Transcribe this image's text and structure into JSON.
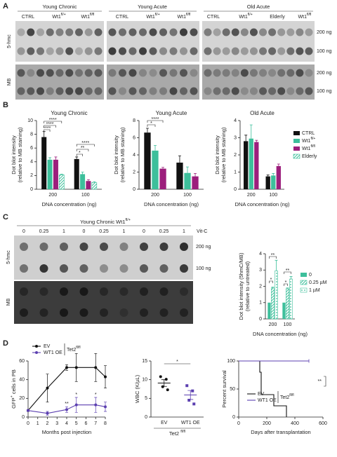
{
  "figure": {
    "panel_a": {
      "label": "A",
      "groups": [
        "Young Chronic",
        "Young Acute",
        "Old Acute"
      ],
      "lanes": [
        "CTRL",
        {
          "text": "Wt1",
          "sup": "fl/+"
        },
        {
          "text": "Wt1",
          "sup": "fl/fl"
        },
        "CTRL",
        {
          "text": "Wt1",
          "sup": "fl/+"
        },
        {
          "text": "Wt1",
          "sup": "fl/fl"
        },
        "CTRL",
        {
          "text": "Wt1",
          "sup": "fl/+"
        },
        "Elderly",
        {
          "text": "Wt1",
          "sup": "fl/fl"
        }
      ],
      "rows": [
        "200 ng",
        "100 ng",
        "200 ng",
        "100 ng"
      ],
      "blots": [
        "5-hmc",
        "MB"
      ]
    },
    "panel_b": {
      "label": "B"
    },
    "panel_c": {
      "label": "C",
      "title": {
        "text": "Young Chronic Wt1",
        "sup": "fl/+"
      },
      "treatment": "Vit-C",
      "lanes": [
        "0",
        "0.25",
        "1",
        "0",
        "0.25",
        "1",
        "0",
        "0.25",
        "1"
      ],
      "rows": [
        "200 ng",
        "100 ng"
      ],
      "blots": [
        "5-hmc",
        "MB"
      ]
    },
    "panel_d": {
      "label": "D"
    }
  },
  "chart_data": [
    {
      "type": "bar",
      "title": "Young Chronic",
      "ylabel": [
        "Dot blot intensity",
        "(relative to MB staining)"
      ],
      "xlabel": "DNA concentration (ng)",
      "categories": [
        "200",
        "100"
      ],
      "ylim": [
        0,
        10
      ],
      "yticks": [
        0,
        2,
        4,
        6,
        8,
        10
      ],
      "legend": "right",
      "series": [
        {
          "name": "CTRL",
          "color": "#111111",
          "values": [
            7.6,
            4.4
          ],
          "errors": [
            0.8,
            0.3
          ]
        },
        {
          "name": {
            "text": "Wt1",
            "sup": "fl/+"
          },
          "color": "#3dbf9b",
          "values": [
            4.3,
            2.2
          ],
          "errors": [
            0.3,
            0.3
          ]
        },
        {
          "name": {
            "text": "Wt1",
            "sup": "fl/fl"
          },
          "color": "#9c1f7c",
          "values": [
            4.3,
            1.2
          ],
          "errors": [
            0.4,
            0.2
          ]
        },
        {
          "name": "Elderly",
          "color": "#3dbf9b",
          "fill": "hatch",
          "values": [
            2.1,
            1.0
          ],
          "errors": [
            0.1,
            0.1
          ]
        }
      ],
      "annotations": [
        "****",
        "****",
        "****",
        "****",
        "**",
        "*"
      ]
    },
    {
      "type": "bar",
      "title": "Young Acute",
      "ylabel": [
        "Dot blot intensity",
        "(relative to MB staining)"
      ],
      "xlabel": "DNA concentration (ng)",
      "categories": [
        "200",
        "100"
      ],
      "ylim": [
        0,
        8
      ],
      "yticks": [
        0,
        2,
        4,
        6,
        8
      ],
      "series": [
        {
          "color": "#111111",
          "values": [
            6.6,
            3.1
          ],
          "errors": [
            0.5,
            0.8
          ]
        },
        {
          "color": "#3dbf9b",
          "values": [
            4.5,
            1.9
          ],
          "errors": [
            0.6,
            0.7
          ]
        },
        {
          "color": "#9c1f7c",
          "values": [
            2.4,
            1.5
          ],
          "errors": [
            0.15,
            0.35
          ]
        }
      ],
      "annotations": [
        "*",
        "****"
      ]
    },
    {
      "type": "bar",
      "title": "Old Acute",
      "ylabel": [
        "Dot blot intensity",
        "(relative to MB staining)"
      ],
      "xlabel": "DNA concentration (ng)",
      "categories": [
        "200",
        "100"
      ],
      "ylim": [
        0,
        4
      ],
      "yticks": [
        0,
        1,
        2,
        3,
        4
      ],
      "series": [
        {
          "color": "#111111",
          "values": [
            2.8,
            0.75
          ],
          "errors": [
            0.35,
            0.08
          ]
        },
        {
          "color": "#3dbf9b",
          "values": [
            2.95,
            0.8
          ],
          "errors": [
            0.8,
            0.12
          ]
        },
        {
          "color": "#9c1f7c",
          "values": [
            2.75,
            1.35
          ],
          "errors": [
            0.1,
            0.12
          ]
        }
      ]
    },
    {
      "type": "bar",
      "ylabel": [
        "Dot blot intensity (5hmC/MB)",
        "(relative to untreated)"
      ],
      "xlabel": "DNA concentration (ng)",
      "categories": [
        "200",
        "100"
      ],
      "ylim": [
        0,
        4
      ],
      "yticks": [
        0,
        1,
        2,
        3,
        4
      ],
      "legend": "right",
      "series": [
        {
          "name": "0",
          "color": "#3dbf9b",
          "values": [
            1,
            1
          ]
        },
        {
          "name": "0.25 µM",
          "color": "#3dbf9b",
          "fill": "hatch",
          "values": [
            1.9,
            1.85
          ],
          "errors": [
            0.05,
            0.05
          ]
        },
        {
          "name": "1 µM",
          "color": "#3dbf9b",
          "fill": "dots",
          "values": [
            2.95,
            2.45
          ],
          "errors": [
            0.65,
            0.15
          ]
        }
      ],
      "annotations": [
        "*",
        "**",
        "*",
        "**"
      ]
    },
    {
      "type": "line",
      "ylabel": [
        {
          "text": "GFP",
          "sup": "+",
          "rest": " cells in PB"
        }
      ],
      "xlabel": "Months post injection",
      "x": [
        0,
        2,
        4,
        5,
        7,
        8
      ],
      "xlim": [
        0,
        8
      ],
      "xticks": [
        0,
        1,
        2,
        3,
        4,
        5,
        6,
        7,
        8
      ],
      "ylim": [
        0,
        60
      ],
      "yticks": [
        0,
        20,
        40,
        60
      ],
      "series": [
        {
          "name": "EV",
          "color": "#111111",
          "values": [
            7,
            31,
            53,
            53,
            53,
            43
          ],
          "errors": [
            1,
            15,
            3,
            15,
            15,
            12
          ]
        },
        {
          "name": "WT1 OE",
          "color": "#5b3fb0",
          "values": [
            7,
            4,
            8,
            13,
            13,
            11
          ],
          "errors": [
            1,
            2,
            3,
            8,
            8,
            5
          ]
        }
      ],
      "legend_group": {
        "text": "Tet2",
        "sup": "fl/fl"
      },
      "annotations": [
        "**",
        "*",
        "*"
      ]
    },
    {
      "type": "dot",
      "ylabel": [
        "WBC (K/µL)"
      ],
      "xlabel": {
        "text": "Tet2 ",
        "sup": "fl/fl"
      },
      "categories": [
        "EV",
        "WT1 OE"
      ],
      "colors": [
        "#111111",
        "#5b3fb0"
      ],
      "values": [
        [
          10.8,
          10.1,
          8.1,
          7.3
        ],
        [
          8.4,
          7.0,
          4.5,
          3.5
        ]
      ],
      "means": [
        9.1,
        5.9
      ],
      "errors": [
        0.9,
        1.2
      ],
      "ylim": [
        0,
        15
      ],
      "yticks": [
        0,
        5,
        10,
        15
      ],
      "annotations": [
        "*"
      ]
    },
    {
      "type": "step",
      "ylabel": [
        "Percent survival"
      ],
      "xlabel": "Days after transplantation",
      "xlim": [
        0,
        600
      ],
      "xticks": [
        0,
        200,
        400,
        600
      ],
      "ylim": [
        0,
        100
      ],
      "yticks": [
        0,
        50,
        100
      ],
      "series": [
        {
          "name": "EV",
          "color": "#111111",
          "x": [
            0,
            150,
            160,
            250,
            340
          ],
          "values": [
            100,
            80,
            40,
            20,
            0
          ]
        },
        {
          "name": "WT1 OE",
          "color": "#5b3fb0",
          "x": [
            0,
            500
          ],
          "values": [
            100,
            100
          ]
        }
      ],
      "legend_group": {
        "text": "Tet2",
        "sup": "fl/fl"
      },
      "annotations": [
        "**"
      ]
    }
  ]
}
